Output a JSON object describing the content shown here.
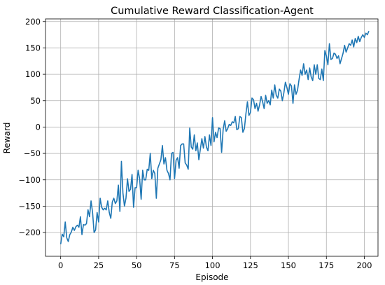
{
  "chart_data": {
    "type": "line",
    "title": "Cumulative Reward Classification-Agent",
    "xlabel": "Episode",
    "ylabel": "Reward",
    "xlim": [
      -10,
      209
    ],
    "ylim": [
      -245,
      205
    ],
    "xticks": [
      0,
      25,
      50,
      75,
      100,
      125,
      150,
      175,
      200
    ],
    "yticks": [
      -200,
      -150,
      -100,
      -50,
      0,
      50,
      100,
      150,
      200
    ],
    "grid": true,
    "line_color": "#1f77b4",
    "series": [
      {
        "values": [
          -222,
          -203,
          -208,
          -180,
          -210,
          -217,
          -204,
          -199,
          -190,
          -196,
          -189,
          -186,
          -190,
          -170,
          -204,
          -185,
          -186,
          -183,
          -157,
          -170,
          -140,
          -162,
          -200,
          -195,
          -162,
          -180,
          -135,
          -152,
          -157,
          -154,
          -157,
          -140,
          -162,
          -173,
          -142,
          -135,
          -145,
          -140,
          -110,
          -160,
          -65,
          -125,
          -150,
          -135,
          -98,
          -122,
          -118,
          -90,
          -152,
          -115,
          -115,
          -82,
          -98,
          -137,
          -82,
          -100,
          -100,
          -80,
          -82,
          -50,
          -98,
          -82,
          -88,
          -135,
          -78,
          -70,
          -62,
          -35,
          -70,
          -58,
          -82,
          -88,
          -100,
          -50,
          -48,
          -98,
          -63,
          -58,
          -78,
          -35,
          -32,
          -32,
          -68,
          -72,
          -80,
          -2,
          -38,
          -42,
          -15,
          -45,
          -30,
          -62,
          -42,
          -22,
          -40,
          -18,
          -38,
          -45,
          -15,
          -35,
          18,
          -28,
          -10,
          -20,
          -2,
          -3,
          -48,
          -5,
          12,
          -8,
          -3,
          5,
          3,
          10,
          8,
          20,
          -5,
          -3,
          20,
          18,
          -10,
          -3,
          25,
          48,
          22,
          28,
          55,
          52,
          35,
          45,
          30,
          42,
          58,
          48,
          35,
          60,
          45,
          50,
          42,
          70,
          55,
          80,
          60,
          55,
          72,
          68,
          50,
          65,
          85,
          75,
          62,
          82,
          78,
          45,
          80,
          62,
          70,
          90,
          108,
          98,
          120,
          100,
          108,
          90,
          112,
          95,
          88,
          118,
          100,
          118,
          92,
          90,
          110,
          88,
          145,
          135,
          118,
          158,
          128,
          130,
          140,
          138,
          130,
          135,
          120,
          130,
          140,
          155,
          142,
          150,
          158,
          155,
          165,
          152,
          168,
          160,
          172,
          162,
          170,
          175,
          170,
          178,
          175,
          182
        ]
      }
    ]
  }
}
